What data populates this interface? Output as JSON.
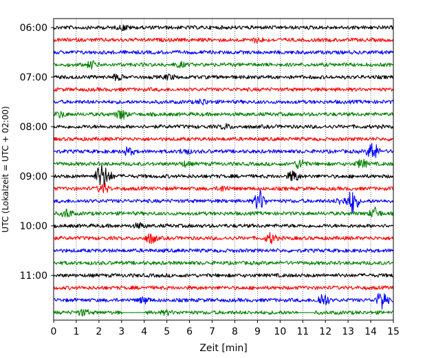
{
  "chart_data": {
    "type": "line",
    "title": "",
    "xlabel": "Zeit  [min]",
    "ylabel": "UTC (Lokalzeit = UTC + 02:00)",
    "xlim": [
      0,
      15
    ],
    "x_ticks": [
      "0",
      "1",
      "2",
      "3",
      "4",
      "5",
      "6",
      "7",
      "8",
      "9",
      "10",
      "11",
      "12",
      "13",
      "14",
      "15"
    ],
    "y_tick_labels": [
      "06:00",
      "07:00",
      "08:00",
      "09:00",
      "10:00",
      "11:00"
    ],
    "grid": "vertical-dotted",
    "row_interval_minutes": 15,
    "row_colors": [
      "#000000",
      "#ff0000",
      "#0000ff",
      "#008000"
    ],
    "rows": [
      {
        "start": "06:00",
        "events": [
          {
            "t": 3.1,
            "amp": 0.5
          }
        ]
      },
      {
        "start": "06:15",
        "events": [
          {
            "t": 9.0,
            "amp": 0.5
          }
        ]
      },
      {
        "start": "06:30",
        "events": []
      },
      {
        "start": "06:45",
        "events": [
          {
            "t": 1.7,
            "amp": 0.8
          },
          {
            "t": 5.6,
            "amp": 0.5
          }
        ]
      },
      {
        "start": "07:00",
        "events": [
          {
            "t": 2.8,
            "amp": 0.6
          },
          {
            "t": 5.1,
            "amp": 0.5
          }
        ]
      },
      {
        "start": "07:15",
        "events": []
      },
      {
        "start": "07:30",
        "events": [
          {
            "t": 6.6,
            "amp": 0.6
          }
        ]
      },
      {
        "start": "07:45",
        "events": [
          {
            "t": 0.3,
            "amp": 0.6
          },
          {
            "t": 3.0,
            "amp": 1.2
          }
        ]
      },
      {
        "start": "08:00",
        "events": [
          {
            "t": 7.6,
            "amp": 0.5
          }
        ]
      },
      {
        "start": "08:15",
        "events": []
      },
      {
        "start": "08:30",
        "events": [
          {
            "t": 3.3,
            "amp": 0.9
          },
          {
            "t": 5.8,
            "amp": 0.6
          },
          {
            "t": 14.1,
            "amp": 2.4
          }
        ]
      },
      {
        "start": "08:45",
        "events": [
          {
            "t": 5.8,
            "amp": 0.5
          },
          {
            "t": 10.9,
            "amp": 1.2
          },
          {
            "t": 13.6,
            "amp": 1.0
          }
        ]
      },
      {
        "start": "09:00",
        "events": [
          {
            "t": 2.1,
            "amp": 3.0
          },
          {
            "t": 2.4,
            "amp": 1.2
          },
          {
            "t": 10.6,
            "amp": 1.4
          }
        ]
      },
      {
        "start": "09:15",
        "events": [
          {
            "t": 2.2,
            "amp": 1.1
          },
          {
            "t": 7.5,
            "amp": 0.6
          }
        ]
      },
      {
        "start": "09:30",
        "events": [
          {
            "t": 9.1,
            "amp": 2.6
          },
          {
            "t": 12.7,
            "amp": 0.8
          },
          {
            "t": 13.2,
            "amp": 3.0
          }
        ]
      },
      {
        "start": "09:45",
        "events": [
          {
            "t": 0.6,
            "amp": 1.0
          },
          {
            "t": 14.2,
            "amp": 1.2
          }
        ]
      },
      {
        "start": "10:00",
        "events": [
          {
            "t": 3.8,
            "amp": 0.5
          }
        ]
      },
      {
        "start": "10:15",
        "events": [
          {
            "t": 4.3,
            "amp": 1.2
          },
          {
            "t": 9.6,
            "amp": 1.2
          }
        ]
      },
      {
        "start": "10:30",
        "events": []
      },
      {
        "start": "10:45",
        "events": []
      },
      {
        "start": "11:00",
        "events": []
      },
      {
        "start": "11:15",
        "events": []
      },
      {
        "start": "11:30",
        "events": [
          {
            "t": 4.0,
            "amp": 0.7
          },
          {
            "t": 11.9,
            "amp": 1.8
          },
          {
            "t": 14.5,
            "amp": 2.4
          }
        ]
      },
      {
        "start": "11:45",
        "events": [
          {
            "t": 1.3,
            "amp": 0.7
          },
          {
            "t": 5.0,
            "amp": 0.4
          }
        ],
        "flat_segments": [
          [
            3.0,
            4.0
          ],
          [
            10.8,
            11.5
          ]
        ]
      }
    ]
  }
}
